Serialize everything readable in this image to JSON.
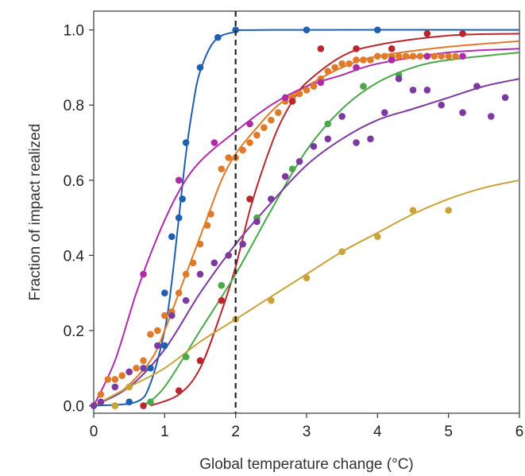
{
  "chart_data": {
    "type": "scatter",
    "xlabel": "Global temperature change (°C)",
    "ylabel": "Fraction of impact realized",
    "xlim": [
      0,
      6
    ],
    "ylim": [
      -0.02,
      1.05
    ],
    "x_ticks": [
      0,
      1,
      2,
      3,
      4,
      5,
      6
    ],
    "y_ticks": [
      0.0,
      0.2,
      0.4,
      0.6,
      0.8,
      1.0
    ],
    "x_tick_labels": [
      "0",
      "1",
      "2",
      "3",
      "4",
      "5",
      "6"
    ],
    "y_tick_labels": [
      "0.0",
      "0.2",
      "0.4",
      "0.6",
      "0.8",
      "1.0"
    ],
    "reference_line": {
      "x": 2,
      "style": "dashed"
    },
    "grid": false,
    "legend": "none",
    "series": [
      {
        "color": "#1f5fb0",
        "points": [
          [
            0.5,
            0.01
          ],
          [
            0.8,
            0.1
          ],
          [
            1.0,
            0.16
          ],
          [
            1.0,
            0.3
          ],
          [
            1.1,
            0.45
          ],
          [
            1.2,
            0.5
          ],
          [
            1.25,
            0.55
          ],
          [
            1.3,
            0.7
          ],
          [
            1.5,
            0.9
          ],
          [
            1.75,
            0.98
          ],
          [
            2.0,
            1.0
          ],
          [
            3.0,
            1.0
          ],
          [
            4.0,
            1.0
          ]
        ],
        "curve": [
          [
            0,
            0.0
          ],
          [
            0.6,
            0.01
          ],
          [
            0.8,
            0.06
          ],
          [
            1.0,
            0.2
          ],
          [
            1.1,
            0.33
          ],
          [
            1.2,
            0.5
          ],
          [
            1.3,
            0.67
          ],
          [
            1.4,
            0.8
          ],
          [
            1.5,
            0.89
          ],
          [
            1.7,
            0.97
          ],
          [
            2.0,
            0.995
          ],
          [
            2.5,
            1.0
          ],
          [
            6.0,
            1.0
          ]
        ]
      },
      {
        "color": "#e07a2a",
        "points": [
          [
            0.1,
            0.03
          ],
          [
            0.2,
            0.07
          ],
          [
            0.3,
            0.07
          ],
          [
            0.4,
            0.08
          ],
          [
            0.5,
            0.09
          ],
          [
            0.6,
            0.1
          ],
          [
            0.7,
            0.12
          ],
          [
            0.8,
            0.19
          ],
          [
            0.9,
            0.2
          ],
          [
            1.0,
            0.24
          ],
          [
            1.1,
            0.25
          ],
          [
            1.2,
            0.3
          ],
          [
            1.3,
            0.35
          ],
          [
            1.4,
            0.38
          ],
          [
            1.5,
            0.43
          ],
          [
            1.6,
            0.48
          ],
          [
            1.65,
            0.51
          ],
          [
            1.8,
            0.63
          ],
          [
            1.9,
            0.66
          ],
          [
            2.0,
            0.66
          ],
          [
            2.1,
            0.68
          ],
          [
            2.2,
            0.7
          ],
          [
            2.3,
            0.72
          ],
          [
            2.4,
            0.74
          ],
          [
            2.5,
            0.76
          ],
          [
            2.6,
            0.78
          ],
          [
            2.7,
            0.81
          ],
          [
            2.8,
            0.82
          ],
          [
            2.9,
            0.83
          ],
          [
            3.0,
            0.84
          ],
          [
            3.1,
            0.85
          ],
          [
            3.2,
            0.87
          ],
          [
            3.3,
            0.89
          ],
          [
            3.4,
            0.9
          ],
          [
            3.5,
            0.91
          ],
          [
            3.6,
            0.91
          ],
          [
            3.7,
            0.92
          ],
          [
            3.8,
            0.92
          ],
          [
            3.9,
            0.92
          ],
          [
            4.0,
            0.93
          ],
          [
            4.1,
            0.93
          ],
          [
            4.2,
            0.93
          ],
          [
            4.3,
            0.93
          ],
          [
            4.4,
            0.93
          ],
          [
            4.5,
            0.93
          ],
          [
            4.6,
            0.93
          ],
          [
            4.7,
            0.93
          ],
          [
            4.8,
            0.93
          ],
          [
            4.9,
            0.93
          ],
          [
            5.0,
            0.93
          ],
          [
            5.1,
            0.93
          ]
        ],
        "curve": [
          [
            0,
            0.0
          ],
          [
            0.4,
            0.04
          ],
          [
            0.8,
            0.12
          ],
          [
            1.0,
            0.2
          ],
          [
            1.2,
            0.3
          ],
          [
            1.4,
            0.4
          ],
          [
            1.6,
            0.5
          ],
          [
            1.8,
            0.6
          ],
          [
            2.0,
            0.67
          ],
          [
            2.3,
            0.74
          ],
          [
            2.6,
            0.8
          ],
          [
            3.0,
            0.85
          ],
          [
            3.5,
            0.9
          ],
          [
            4.0,
            0.93
          ],
          [
            5.0,
            0.955
          ],
          [
            6.0,
            0.97
          ]
        ]
      },
      {
        "color": "#b8262e",
        "points": [
          [
            0.7,
            0.0
          ],
          [
            1.2,
            0.04
          ],
          [
            1.5,
            0.12
          ],
          [
            1.8,
            0.28
          ],
          [
            2.2,
            0.55
          ],
          [
            2.8,
            0.81
          ],
          [
            3.2,
            0.95
          ],
          [
            3.7,
            0.95
          ],
          [
            4.2,
            0.95
          ],
          [
            4.7,
            0.99
          ],
          [
            5.2,
            0.99
          ]
        ],
        "curve": [
          [
            0.8,
            0.0
          ],
          [
            1.2,
            0.03
          ],
          [
            1.5,
            0.1
          ],
          [
            1.8,
            0.25
          ],
          [
            2.0,
            0.37
          ],
          [
            2.2,
            0.52
          ],
          [
            2.4,
            0.64
          ],
          [
            2.6,
            0.74
          ],
          [
            2.8,
            0.81
          ],
          [
            3.0,
            0.86
          ],
          [
            3.5,
            0.93
          ],
          [
            4.0,
            0.96
          ],
          [
            5.0,
            0.985
          ],
          [
            6.0,
            0.99
          ]
        ]
      },
      {
        "color": "#4aa84a",
        "points": [
          [
            0.3,
            0.0
          ],
          [
            0.8,
            0.01
          ],
          [
            1.3,
            0.13
          ],
          [
            1.8,
            0.32
          ],
          [
            2.3,
            0.5
          ],
          [
            2.8,
            0.63
          ],
          [
            3.3,
            0.75
          ],
          [
            3.8,
            0.85
          ],
          [
            4.3,
            0.88
          ]
        ],
        "curve": [
          [
            0.7,
            0.0
          ],
          [
            1.0,
            0.05
          ],
          [
            1.5,
            0.2
          ],
          [
            2.0,
            0.35
          ],
          [
            2.5,
            0.52
          ],
          [
            3.0,
            0.68
          ],
          [
            3.5,
            0.79
          ],
          [
            4.0,
            0.86
          ],
          [
            4.5,
            0.9
          ],
          [
            5.0,
            0.92
          ],
          [
            6.0,
            0.94
          ]
        ]
      },
      {
        "color": "#7a3aa0",
        "points": [
          [
            0.0,
            0.0
          ],
          [
            0.1,
            0.01
          ],
          [
            0.3,
            0.05
          ],
          [
            0.5,
            0.09
          ],
          [
            0.7,
            0.1
          ],
          [
            0.9,
            0.16
          ],
          [
            1.1,
            0.24
          ],
          [
            1.3,
            0.28
          ],
          [
            1.5,
            0.35
          ],
          [
            1.7,
            0.38
          ],
          [
            1.9,
            0.4
          ],
          [
            2.1,
            0.43
          ],
          [
            2.3,
            0.49
          ],
          [
            2.5,
            0.55
          ],
          [
            2.7,
            0.61
          ],
          [
            2.9,
            0.65
          ],
          [
            3.1,
            0.69
          ],
          [
            3.3,
            0.71
          ],
          [
            3.5,
            0.77
          ],
          [
            3.7,
            0.7
          ],
          [
            3.9,
            0.71
          ],
          [
            4.1,
            0.78
          ],
          [
            4.3,
            0.87
          ],
          [
            4.5,
            0.84
          ],
          [
            4.7,
            0.84
          ],
          [
            4.9,
            0.8
          ],
          [
            5.2,
            0.78
          ],
          [
            5.4,
            0.85
          ],
          [
            5.6,
            0.77
          ],
          [
            5.8,
            0.82
          ]
        ],
        "curve": [
          [
            0,
            0.0
          ],
          [
            0.5,
            0.05
          ],
          [
            1.0,
            0.15
          ],
          [
            1.5,
            0.3
          ],
          [
            2.0,
            0.43
          ],
          [
            2.5,
            0.54
          ],
          [
            3.0,
            0.64
          ],
          [
            3.5,
            0.71
          ],
          [
            4.0,
            0.76
          ],
          [
            4.5,
            0.79
          ],
          [
            5.0,
            0.82
          ],
          [
            5.5,
            0.85
          ],
          [
            6.0,
            0.87
          ]
        ]
      },
      {
        "color": "#b02aa8",
        "points": [
          [
            0.7,
            0.35
          ],
          [
            1.2,
            0.6
          ],
          [
            1.7,
            0.7
          ],
          [
            2.2,
            0.75
          ],
          [
            2.7,
            0.82
          ],
          [
            3.2,
            0.86
          ],
          [
            3.7,
            0.9
          ],
          [
            4.2,
            0.92
          ],
          [
            4.7,
            0.93
          ],
          [
            5.2,
            0.93
          ]
        ],
        "curve": [
          [
            0,
            0.0
          ],
          [
            0.3,
            0.12
          ],
          [
            0.6,
            0.3
          ],
          [
            0.9,
            0.45
          ],
          [
            1.2,
            0.57
          ],
          [
            1.5,
            0.65
          ],
          [
            2.0,
            0.73
          ],
          [
            2.5,
            0.8
          ],
          [
            3.0,
            0.85
          ],
          [
            3.5,
            0.88
          ],
          [
            4.0,
            0.91
          ],
          [
            5.0,
            0.94
          ],
          [
            6.0,
            0.95
          ]
        ]
      },
      {
        "color": "#c9a23a",
        "points": [
          [
            0.3,
            0.0
          ],
          [
            0.5,
            0.05
          ],
          [
            2.0,
            0.23
          ],
          [
            2.5,
            0.28
          ],
          [
            3.0,
            0.34
          ],
          [
            3.5,
            0.41
          ],
          [
            4.0,
            0.45
          ],
          [
            4.5,
            0.52
          ],
          [
            5.0,
            0.52
          ]
        ],
        "curve": [
          [
            0,
            0.0
          ],
          [
            0.5,
            0.05
          ],
          [
            1.0,
            0.1
          ],
          [
            1.5,
            0.17
          ],
          [
            2.0,
            0.23
          ],
          [
            2.5,
            0.29
          ],
          [
            3.0,
            0.35
          ],
          [
            3.5,
            0.41
          ],
          [
            4.0,
            0.46
          ],
          [
            4.5,
            0.51
          ],
          [
            5.0,
            0.55
          ],
          [
            5.5,
            0.58
          ],
          [
            6.0,
            0.6
          ]
        ]
      }
    ]
  }
}
